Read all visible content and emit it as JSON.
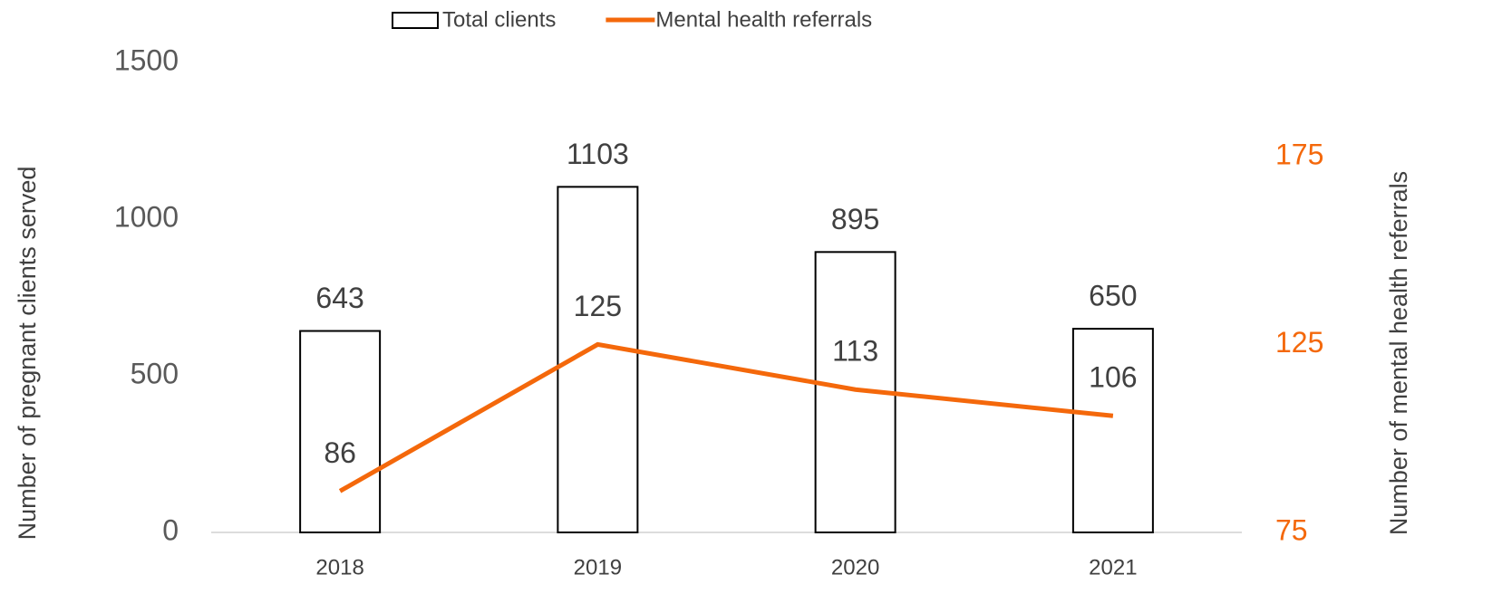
{
  "chart_data": {
    "type": "bar",
    "categories": [
      "2018",
      "2019",
      "2020",
      "2021"
    ],
    "series": [
      {
        "name": "Total clients",
        "type": "bar",
        "color": "#000000",
        "values": [
          643,
          1103,
          895,
          650
        ]
      },
      {
        "name": "Mental health referrals",
        "type": "line",
        "axis": "y2",
        "color": "#f4680b",
        "values": [
          86,
          125,
          113,
          106
        ]
      }
    ],
    "ylabel": "Number of pregnant clients served",
    "y2label": "Number of mental health referrals",
    "ylim": [
      0,
      1500
    ],
    "yticks": [
      0,
      500,
      1000,
      1500
    ],
    "y2lim": [
      75,
      200
    ],
    "y2ticks": [
      75,
      125,
      175
    ],
    "legend": "top"
  }
}
